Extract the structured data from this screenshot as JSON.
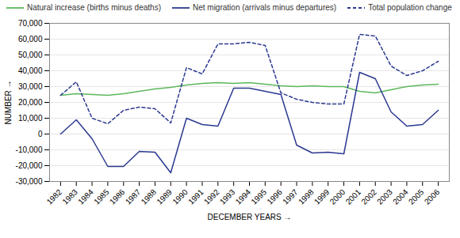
{
  "chart_data": {
    "type": "line",
    "xlabel": "DECEMBER YEARS",
    "ylabel": "NUMBER",
    "x": [
      1982,
      1983,
      1984,
      1985,
      1986,
      1987,
      1988,
      1989,
      1990,
      1991,
      1992,
      1993,
      1994,
      1995,
      1996,
      1997,
      1998,
      1999,
      2000,
      2001,
      2002,
      2003,
      2004,
      2005,
      2006
    ],
    "xlim": [
      1981.3,
      2006.7
    ],
    "xticks": [
      1982,
      1983,
      1984,
      1985,
      1986,
      1987,
      1988,
      1989,
      1990,
      1991,
      1992,
      1993,
      1994,
      1995,
      1996,
      1997,
      1998,
      1999,
      2000,
      2001,
      2002,
      2003,
      2004,
      2005,
      2006
    ],
    "ylim": [
      -30000,
      70000
    ],
    "yticks": [
      {
        "value": -30000,
        "label": "-30,000"
      },
      {
        "value": -20000,
        "label": "-20,000"
      },
      {
        "value": -10000,
        "label": "-10,000"
      },
      0,
      {
        "value": 10000,
        "label": "10,000"
      },
      {
        "value": 20000,
        "label": "20,000"
      },
      {
        "value": 30000,
        "label": "30,000"
      },
      {
        "value": 40000,
        "label": "40,000"
      },
      {
        "value": 50000,
        "label": "50,000"
      },
      {
        "value": 60000,
        "label": "60,000"
      },
      {
        "value": 70000,
        "label": "70,000"
      }
    ],
    "grid": true,
    "legend": "upper left",
    "series": [
      {
        "name": "Natural increase (births minus deaths)",
        "color": "#5cb85c",
        "line_style": "solid",
        "values": [
          24500,
          25500,
          25000,
          24500,
          25500,
          27000,
          28500,
          29500,
          31000,
          32000,
          32500,
          32000,
          32500,
          31500,
          30500,
          30000,
          30500,
          30000,
          30000,
          27000,
          26000,
          28000,
          30000,
          31000,
          31500
        ]
      },
      {
        "name": "Net migration (arrivals minus departures)",
        "color": "#2b3990",
        "line_style": "solid",
        "values": [
          0,
          9000,
          -3000,
          -20500,
          -20500,
          -11000,
          -11500,
          -24500,
          10000,
          6000,
          5000,
          29000,
          29000,
          27000,
          25000,
          -7000,
          -12000,
          -11500,
          -12500,
          39000,
          35000,
          14000,
          5000,
          6000,
          15000
        ]
      },
      {
        "name": "Total population change",
        "color": "#2b3990",
        "line_style": "dashed",
        "values": [
          24500,
          33000,
          10000,
          6500,
          15000,
          17000,
          16000,
          7000,
          42000,
          38000,
          57000,
          57000,
          58000,
          56000,
          26000,
          22000,
          20000,
          19000,
          19000,
          63000,
          62000,
          43000,
          37000,
          40000,
          46000
        ]
      }
    ]
  }
}
